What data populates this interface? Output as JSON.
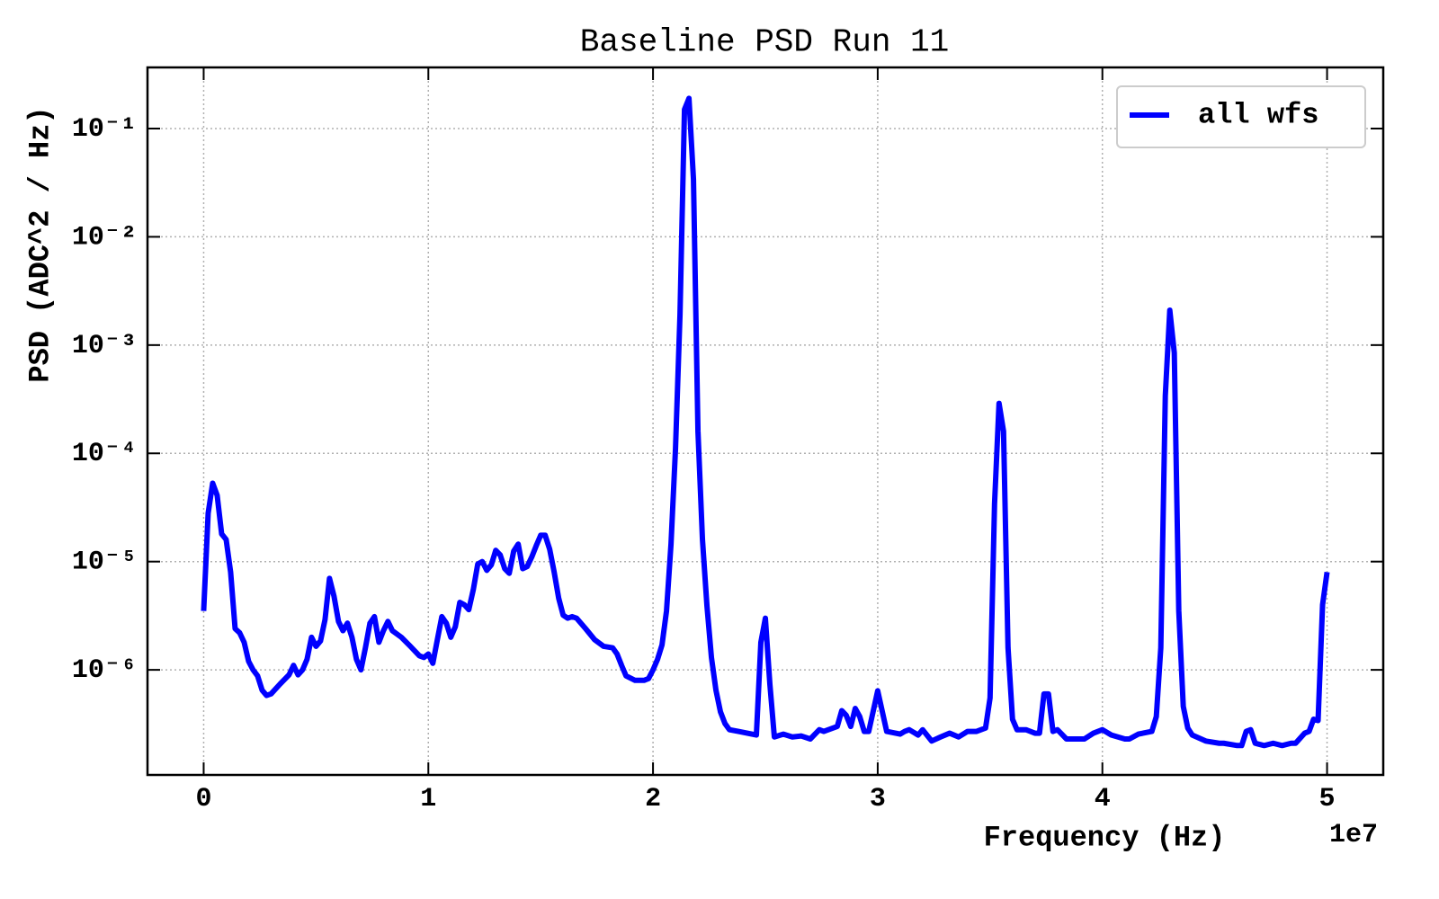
{
  "chart_data": {
    "type": "line",
    "title": "Baseline PSD Run 11",
    "x_label": "Frequency (Hz)",
    "y_label": "PSD (ADC^2 / Hz)",
    "x_offset_text": "1e7",
    "y_scale": "log",
    "grid": true,
    "legend": "upper right",
    "xlim": [
      -0.25,
      5.25
    ],
    "xticks": [
      0,
      1,
      2,
      3,
      4,
      5
    ],
    "ylim": [
      1.07e-07,
      0.367
    ],
    "yticks": [
      {
        "value": 1e-06,
        "label": "10⁻⁶"
      },
      {
        "value": 1e-05,
        "label": "10⁻⁵"
      },
      {
        "value": 0.0001,
        "label": "10⁻⁴"
      },
      {
        "value": 0.001,
        "label": "10⁻³"
      },
      {
        "value": 0.01,
        "label": "10⁻²"
      },
      {
        "value": 0.1,
        "label": "10⁻¹"
      }
    ],
    "x": [
      0,
      0.02,
      0.04,
      0.06,
      0.08,
      0.1,
      0.12,
      0.14,
      0.16,
      0.18,
      0.2,
      0.22,
      0.24,
      0.26,
      0.28,
      0.3,
      0.34,
      0.38,
      0.4,
      0.42,
      0.44,
      0.46,
      0.48,
      0.5,
      0.52,
      0.54,
      0.56,
      0.58,
      0.6,
      0.62,
      0.64,
      0.66,
      0.68,
      0.7,
      0.72,
      0.74,
      0.76,
      0.78,
      0.8,
      0.82,
      0.84,
      0.88,
      0.92,
      0.96,
      0.98,
      1.0,
      1.02,
      1.04,
      1.06,
      1.08,
      1.1,
      1.12,
      1.14,
      1.16,
      1.18,
      1.2,
      1.22,
      1.24,
      1.26,
      1.28,
      1.3,
      1.32,
      1.34,
      1.36,
      1.38,
      1.4,
      1.42,
      1.44,
      1.46,
      1.48,
      1.5,
      1.52,
      1.54,
      1.56,
      1.58,
      1.6,
      1.62,
      1.64,
      1.66,
      1.7,
      1.74,
      1.78,
      1.82,
      1.84,
      1.86,
      1.88,
      1.92,
      1.96,
      1.98,
      2.0,
      2.02,
      2.04,
      2.06,
      2.08,
      2.1,
      2.12,
      2.14,
      2.16,
      2.18,
      2.2,
      2.22,
      2.24,
      2.26,
      2.28,
      2.3,
      2.32,
      2.34,
      2.38,
      2.42,
      2.46,
      2.48,
      2.5,
      2.52,
      2.54,
      2.58,
      2.62,
      2.66,
      2.7,
      2.74,
      2.76,
      2.82,
      2.84,
      2.86,
      2.88,
      2.9,
      2.92,
      2.94,
      2.96,
      3.0,
      3.04,
      3.1,
      3.12,
      3.14,
      3.18,
      3.2,
      3.24,
      3.28,
      3.32,
      3.36,
      3.4,
      3.44,
      3.48,
      3.5,
      3.52,
      3.54,
      3.56,
      3.58,
      3.6,
      3.62,
      3.66,
      3.7,
      3.72,
      3.74,
      3.76,
      3.78,
      3.8,
      3.84,
      3.88,
      3.92,
      3.96,
      4.0,
      4.04,
      4.1,
      4.12,
      4.16,
      4.22,
      4.24,
      4.26,
      4.28,
      4.3,
      4.32,
      4.34,
      4.36,
      4.38,
      4.4,
      4.46,
      4.52,
      4.54,
      4.6,
      4.62,
      4.64,
      4.66,
      4.68,
      4.72,
      4.76,
      4.8,
      4.84,
      4.86,
      4.9,
      4.92,
      4.94,
      4.96,
      4.98,
      5.0
    ],
    "series": [
      {
        "name": "all wfs",
        "color": "#0000ff",
        "values": [
          3.5e-06,
          2.8e-05,
          5.3e-05,
          4.1e-05,
          1.8e-05,
          1.6e-05,
          8e-06,
          2.4e-06,
          2.2e-06,
          1.8e-06,
          1.2e-06,
          1e-06,
          8.8e-07,
          6.5e-07,
          5.8e-07,
          6e-07,
          7.4e-07,
          9e-07,
          1.1e-06,
          9e-07,
          1e-06,
          1.25e-06,
          2e-06,
          1.65e-06,
          1.85e-06,
          2.9e-06,
          7e-06,
          4.8e-06,
          2.8e-06,
          2.3e-06,
          2.7e-06,
          2e-06,
          1.25e-06,
          1e-06,
          1.6e-06,
          2.7e-06,
          3.1e-06,
          1.8e-06,
          2.3e-06,
          2.8e-06,
          2.3e-06,
          2e-06,
          1.65e-06,
          1.35e-06,
          1.3e-06,
          1.4e-06,
          1.15e-06,
          1.9e-06,
          3.1e-06,
          2.7e-06,
          2e-06,
          2.5e-06,
          4.2e-06,
          4e-06,
          3.6e-06,
          5.5e-06,
          9.5e-06,
          1e-05,
          8.3e-06,
          9.3e-06,
          1.27e-05,
          1.15e-05,
          8.6e-06,
          7.8e-06,
          1.25e-05,
          1.45e-05,
          8.6e-06,
          9e-06,
          1.1e-05,
          1.4e-05,
          1.75e-05,
          1.75e-05,
          1.3e-05,
          8e-06,
          4.6e-06,
          3.2e-06,
          3e-06,
          3.1e-06,
          3e-06,
          2.4e-06,
          1.9e-06,
          1.65e-06,
          1.6e-06,
          1.4e-06,
          1.1e-06,
          8.8e-07,
          8e-07,
          8e-07,
          8.3e-07,
          1e-06,
          1.25e-06,
          1.7e-06,
          3.5e-06,
          1.45e-05,
          0.00011,
          0.0019,
          0.15,
          0.19,
          0.034,
          0.00016,
          1.6e-05,
          3.9e-06,
          1.3e-06,
          6.5e-07,
          4.1e-07,
          3.2e-07,
          2.8e-07,
          2.7e-07,
          2.6e-07,
          2.5e-07,
          1.8e-06,
          3e-06,
          7.4e-07,
          2.4e-07,
          2.55e-07,
          2.4e-07,
          2.45e-07,
          2.3e-07,
          2.8e-07,
          2.7e-07,
          3e-07,
          4.2e-07,
          3.8e-07,
          3e-07,
          4.4e-07,
          3.7e-07,
          2.7e-07,
          2.7e-07,
          6.4e-07,
          2.7e-07,
          2.55e-07,
          2.7e-07,
          2.8e-07,
          2.5e-07,
          2.8e-07,
          2.2e-07,
          2.4e-07,
          2.6e-07,
          2.4e-07,
          2.7e-07,
          2.7e-07,
          2.9e-07,
          5.5e-07,
          3.4e-05,
          0.00029,
          0.00016,
          1.6e-06,
          3.5e-07,
          2.8e-07,
          2.8e-07,
          2.6e-07,
          2.6e-07,
          6e-07,
          6e-07,
          2.7e-07,
          2.8e-07,
          2.3e-07,
          2.3e-07,
          2.3e-07,
          2.6e-07,
          2.8e-07,
          2.5e-07,
          2.3e-07,
          2.3e-07,
          2.55e-07,
          2.7e-07,
          3.7e-07,
          1.6e-06,
          0.00034,
          0.0021,
          0.00085,
          3.5e-06,
          4.6e-07,
          2.9e-07,
          2.5e-07,
          2.2e-07,
          2.1e-07,
          2.1e-07,
          2e-07,
          2e-07,
          2.7e-07,
          2.8e-07,
          2.1e-07,
          2e-07,
          2.1e-07,
          2e-07,
          2.1e-07,
          2.1e-07,
          2.6e-07,
          2.7e-07,
          3.5e-07,
          3.4e-07,
          4e-06,
          8e-06
        ]
      }
    ]
  }
}
